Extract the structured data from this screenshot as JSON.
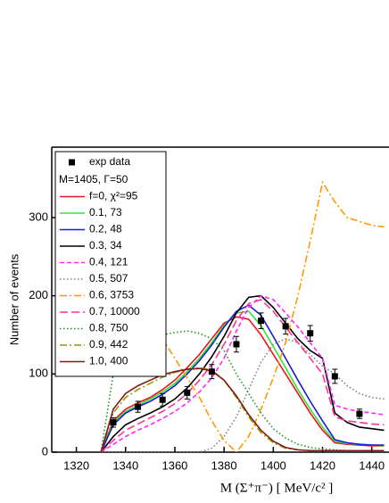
{
  "chart_data": {
    "type": "line",
    "x_label": "M (Σ⁺π⁻) [ MeV/c² ]",
    "y_label": "Number of events",
    "xlim": [
      1310,
      1447
    ],
    "ylim": [
      0,
      390
    ],
    "xticks": [
      1320,
      1340,
      1360,
      1380,
      1400,
      1420,
      1440
    ],
    "yticks": [
      0,
      100,
      200,
      300
    ],
    "legend_title": "M=1405, Γ=50",
    "legend": "top-left",
    "x": [
      1330,
      1335,
      1340,
      1345,
      1350,
      1355,
      1360,
      1365,
      1370,
      1375,
      1380,
      1385,
      1390,
      1395,
      1400,
      1405,
      1410,
      1415,
      1420,
      1425,
      1430,
      1435,
      1440,
      1445
    ],
    "series": [
      {
        "name": "f=0, χ²=95",
        "color": "#e8141e",
        "dash": "solid",
        "values": [
          0,
          40,
          55,
          63,
          70,
          80,
          92,
          108,
          125,
          145,
          165,
          173,
          170,
          150,
          125,
          100,
          75,
          50,
          28,
          12,
          10,
          9,
          8,
          8
        ]
      },
      {
        "name": "0.1, 73",
        "color": "#33e533",
        "dash": "solid",
        "values": [
          0,
          38,
          52,
          60,
          68,
          77,
          88,
          103,
          120,
          140,
          162,
          178,
          180,
          162,
          135,
          108,
          80,
          55,
          32,
          14,
          11,
          10,
          9,
          8
        ]
      },
      {
        "name": "0.2, 48",
        "color": "#1a1ad9",
        "dash": "solid",
        "values": [
          0,
          35,
          50,
          58,
          65,
          74,
          85,
          100,
          117,
          137,
          160,
          180,
          188,
          175,
          148,
          120,
          92,
          65,
          40,
          16,
          12,
          10,
          9,
          9
        ]
      },
      {
        "name": "0.3, 34",
        "color": "#000000",
        "dash": "solid",
        "values": [
          0,
          20,
          35,
          43,
          50,
          58,
          68,
          82,
          100,
          122,
          148,
          178,
          198,
          200,
          185,
          165,
          145,
          130,
          120,
          50,
          38,
          32,
          30,
          28
        ]
      },
      {
        "name": "0.4, 121",
        "color": "#ff26ff",
        "dash": "dash",
        "values": [
          0,
          10,
          20,
          28,
          35,
          43,
          52,
          63,
          77,
          95,
          120,
          155,
          185,
          200,
          195,
          178,
          160,
          140,
          120,
          60,
          55,
          52,
          50,
          48
        ]
      },
      {
        "name": "0.5, 507",
        "color": "#808080",
        "dash": "dot",
        "values": [
          0,
          0,
          0,
          0,
          0,
          0,
          0,
          0,
          0,
          5,
          20,
          45,
          80,
          115,
          138,
          145,
          140,
          125,
          110,
          100,
          85,
          75,
          70,
          68
        ]
      },
      {
        "name": "0.6, 3753",
        "color": "#ff9900",
        "dash": "dashdot",
        "values": [
          250,
          230,
          215,
          195,
          170,
          145,
          120,
          95,
          70,
          40,
          15,
          0,
          20,
          55,
          95,
          140,
          200,
          270,
          345,
          320,
          300,
          295,
          290,
          288
        ]
      },
      {
        "name": "0.7, 10000",
        "color": "#ff3399",
        "dash": "longdash",
        "values": [
          0,
          15,
          28,
          36,
          44,
          52,
          62,
          75,
          92,
          112,
          138,
          168,
          190,
          195,
          180,
          160,
          140,
          120,
          100,
          45,
          40,
          38,
          36,
          35
        ]
      },
      {
        "name": "0.8, 750",
        "color": "#1a991a",
        "dash": "dot",
        "values": [
          0,
          100,
          130,
          140,
          145,
          150,
          153,
          155,
          152,
          145,
          130,
          100,
          75,
          50,
          30,
          18,
          10,
          6,
          4,
          3,
          2,
          2,
          2,
          2
        ]
      },
      {
        "name": "0.9, 442",
        "color": "#999900",
        "dash": "dashdot",
        "values": [
          0,
          50,
          70,
          80,
          88,
          96,
          102,
          106,
          108,
          105,
          92,
          70,
          45,
          25,
          12,
          5,
          3,
          2,
          2,
          2,
          2,
          2,
          2,
          2
        ]
      },
      {
        "name": "1.0, 400",
        "color": "#801a1a",
        "dash": "solid",
        "values": [
          0,
          55,
          75,
          85,
          92,
          99,
          103,
          106,
          107,
          104,
          92,
          72,
          48,
          28,
          14,
          6,
          3,
          2,
          2,
          2,
          2,
          2,
          2,
          2
        ]
      }
    ],
    "points": {
      "name": "exp data",
      "color": "#000000",
      "x": [
        1335,
        1345,
        1355,
        1365,
        1375,
        1385,
        1395,
        1405,
        1415,
        1425,
        1435
      ],
      "values": [
        38,
        58,
        67,
        76,
        103,
        138,
        168,
        161,
        152,
        97,
        49
      ],
      "errors": [
        6,
        7,
        8,
        8,
        9,
        10,
        10,
        10,
        10,
        9,
        6
      ]
    }
  }
}
